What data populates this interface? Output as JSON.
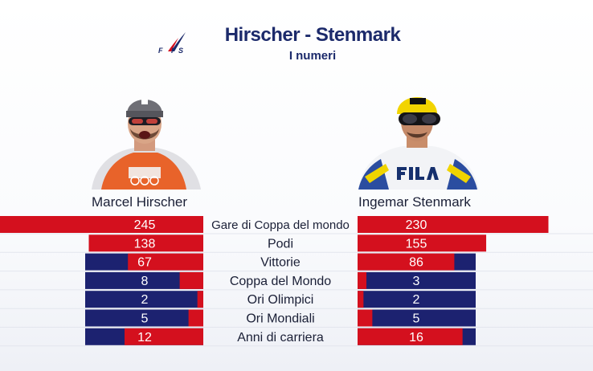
{
  "header": {
    "logo_text": "FIS",
    "title": "Hirscher - Stenmark",
    "subtitle": "I numeri"
  },
  "athletes": {
    "left": "Marcel Hirscher",
    "right": "Ingemar Stenmark"
  },
  "colors": {
    "navy": "#1c2270",
    "red": "#d4101e",
    "title": "#1c2a6b"
  },
  "chart_data": {
    "type": "bar",
    "categories": [
      "Gare di Coppa del mondo",
      "Podi",
      "Vittorie",
      "Coppa del Mondo",
      "Ori Olimpici",
      "Ori Mondiali",
      "Anni di carriera"
    ],
    "series": [
      {
        "name": "Marcel Hirscher",
        "values": [
          245,
          138,
          67,
          8,
          2,
          5,
          12
        ]
      },
      {
        "name": "Ingemar Stenmark",
        "values": [
          230,
          155,
          86,
          3,
          2,
          5,
          16
        ]
      }
    ]
  }
}
